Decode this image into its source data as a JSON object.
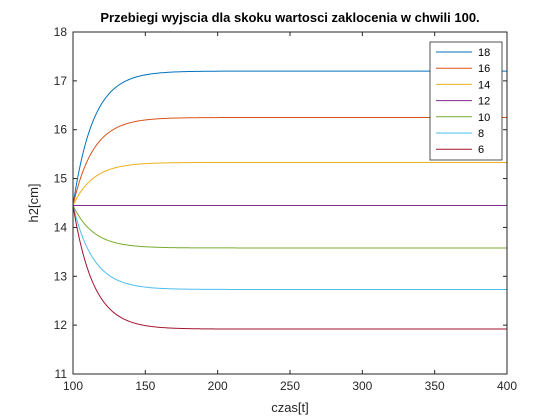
{
  "chart_data": {
    "type": "line",
    "title": "Przebiegi wyjscia dla skoku wartosci zaklocenia w chwili 100.",
    "xlabel": "czas[t]",
    "ylabel": "h2[cm]",
    "xlim": [
      100,
      400
    ],
    "ylim": [
      11,
      18
    ],
    "xticks": [
      "100",
      "150",
      "200",
      "250",
      "300",
      "350",
      "400"
    ],
    "yticks": [
      "11",
      "12",
      "13",
      "14",
      "15",
      "16",
      "17",
      "18"
    ],
    "grid": false,
    "legend_position": "top-right",
    "initial_value": 14.45,
    "time_constant": 14,
    "series": [
      {
        "name": "18",
        "color": "#0072BD",
        "final_value": 17.2
      },
      {
        "name": "16",
        "color": "#D95319",
        "final_value": 16.25
      },
      {
        "name": "14",
        "color": "#EDB120",
        "final_value": 15.33
      },
      {
        "name": "12",
        "color": "#7E2F8E",
        "final_value": 14.45
      },
      {
        "name": "10",
        "color": "#77AC30",
        "final_value": 13.58
      },
      {
        "name": "8",
        "color": "#4DBEEE",
        "final_value": 12.73
      },
      {
        "name": "6",
        "color": "#A2142F",
        "final_value": 11.92
      }
    ]
  }
}
